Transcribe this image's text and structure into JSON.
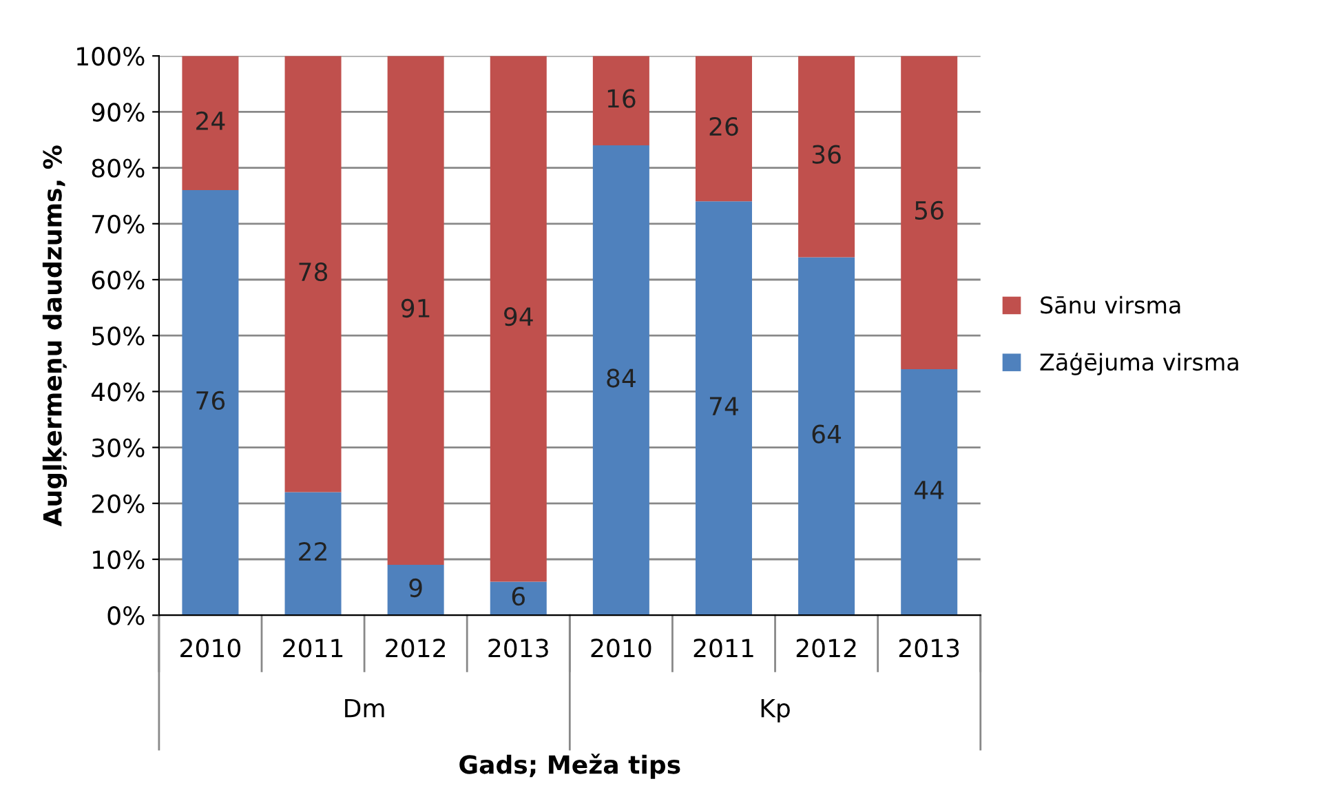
{
  "chart_data": {
    "type": "bar",
    "stacked": true,
    "xlabel": "Gads; Meža tips",
    "ylabel": "Augļķermeņu daudzums, %",
    "categories": [
      "2010",
      "2011",
      "2012",
      "2013",
      "2010",
      "2011",
      "2012",
      "2013"
    ],
    "annotations": [
      "Dm",
      "Kp"
    ],
    "series": [
      {
        "name": "Zāģējuma virsma",
        "color": "#4f81bd",
        "values": [
          76,
          22,
          9,
          6,
          84,
          74,
          64,
          44
        ]
      },
      {
        "name": "Sānu virsma",
        "color": "#c0504d",
        "values": [
          24,
          78,
          91,
          94,
          16,
          26,
          36,
          56
        ]
      }
    ],
    "ylim": [
      0,
      100
    ],
    "yticks": [
      {
        "value": 0,
        "label": "0%"
      },
      {
        "value": 10,
        "label": "10%"
      },
      {
        "value": 20,
        "label": "20%"
      },
      {
        "value": 30,
        "label": "30%"
      },
      {
        "value": 40,
        "label": "40%"
      },
      {
        "value": 50,
        "label": "50%"
      },
      {
        "value": 60,
        "label": "60%"
      },
      {
        "value": 70,
        "label": "70%"
      },
      {
        "value": 80,
        "label": "80%"
      },
      {
        "value": 90,
        "label": "90%"
      },
      {
        "value": 100,
        "label": "100%"
      }
    ],
    "grid": "y",
    "legend": "right",
    "data_labels": true
  }
}
